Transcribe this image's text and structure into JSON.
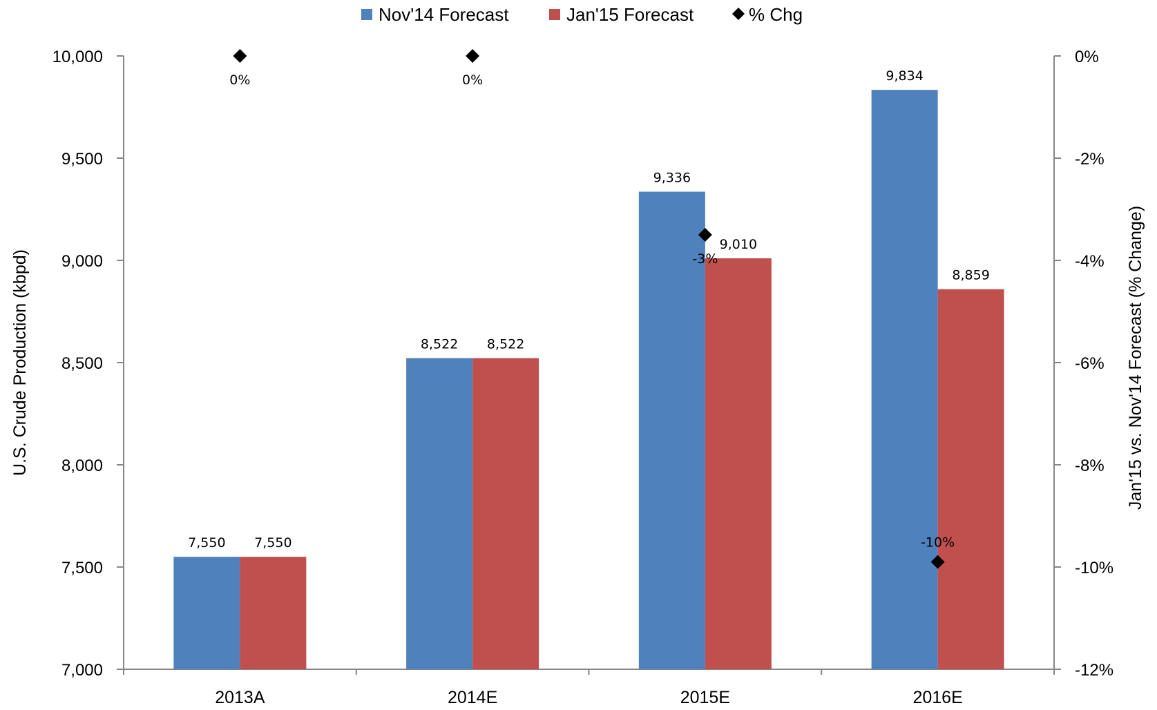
{
  "chart_data": {
    "type": "bar",
    "categories": [
      "2013A",
      "2014E",
      "2015E",
      "2016E"
    ],
    "series": [
      {
        "name": "Nov'14 Forecast",
        "values": [
          7550,
          8522,
          9336,
          9834
        ],
        "labels": [
          "7,550",
          "8,522",
          "9,336",
          "9,834"
        ],
        "color": "#4f81bd"
      },
      {
        "name": "Jan'15 Forecast",
        "values": [
          7550,
          8522,
          9010,
          8859
        ],
        "labels": [
          "7,550",
          "8,522",
          "9,010",
          "8,859"
        ],
        "color": "#c0504d"
      }
    ],
    "pct_chg": {
      "name": "% Chg",
      "type": "scatter",
      "marker": "diamond",
      "axis": "right",
      "color": "#000000",
      "values": [
        0,
        0,
        -3.5,
        -9.9
      ],
      "labels": [
        "0%",
        "0%",
        "-3%",
        "-10%"
      ]
    },
    "ylabel": "U.S. Crude Production  (kbpd)",
    "ylim": [
      7000,
      10000
    ],
    "y_ticks": [
      "7,000",
      "7,500",
      "8,000",
      "8,500",
      "9,000",
      "9,500",
      "10,000"
    ],
    "y2label": "Jan'15 vs. Nov'14 Forecast (% Change)",
    "y2lim": [
      -12,
      0
    ],
    "y2_ticks": [
      "-12%",
      "-10%",
      "-8%",
      "-6%",
      "-4%",
      "-2%",
      "0%"
    ],
    "legend_position": "top-center",
    "grid": false
  }
}
